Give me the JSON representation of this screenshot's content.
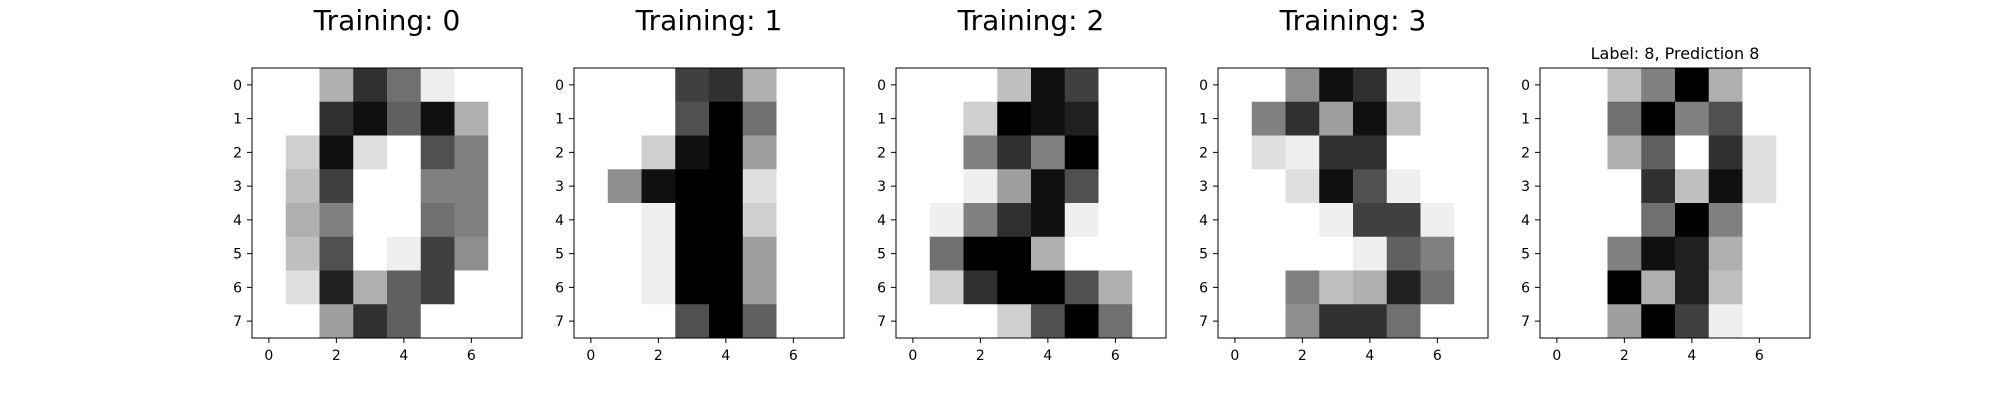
{
  "chart_data": [
    {
      "type": "heatmap",
      "title": "Training: 0",
      "colormap": "gray_r",
      "vmin": 0,
      "vmax": 16,
      "x_ticks": [
        0,
        2,
        4,
        6
      ],
      "y_ticks": [
        0,
        1,
        2,
        3,
        4,
        5,
        6,
        7
      ],
      "values": [
        [
          0,
          0,
          5,
          13,
          9,
          1,
          0,
          0
        ],
        [
          0,
          0,
          13,
          15,
          10,
          15,
          5,
          0
        ],
        [
          0,
          3,
          15,
          2,
          0,
          11,
          8,
          0
        ],
        [
          0,
          4,
          12,
          0,
          0,
          8,
          8,
          0
        ],
        [
          0,
          5,
          8,
          0,
          0,
          9,
          8,
          0
        ],
        [
          0,
          4,
          11,
          0,
          1,
          12,
          7,
          0
        ],
        [
          0,
          2,
          14,
          5,
          10,
          12,
          0,
          0
        ],
        [
          0,
          0,
          6,
          13,
          10,
          0,
          0,
          0
        ]
      ]
    },
    {
      "type": "heatmap",
      "title": "Training: 1",
      "colormap": "gray_r",
      "vmin": 0,
      "vmax": 16,
      "x_ticks": [
        0,
        2,
        4,
        6
      ],
      "y_ticks": [
        0,
        1,
        2,
        3,
        4,
        5,
        6,
        7
      ],
      "values": [
        [
          0,
          0,
          0,
          12,
          13,
          5,
          0,
          0
        ],
        [
          0,
          0,
          0,
          11,
          16,
          9,
          0,
          0
        ],
        [
          0,
          0,
          3,
          15,
          16,
          6,
          0,
          0
        ],
        [
          0,
          7,
          15,
          16,
          16,
          2,
          0,
          0
        ],
        [
          0,
          0,
          1,
          16,
          16,
          3,
          0,
          0
        ],
        [
          0,
          0,
          1,
          16,
          16,
          6,
          0,
          0
        ],
        [
          0,
          0,
          1,
          16,
          16,
          6,
          0,
          0
        ],
        [
          0,
          0,
          0,
          11,
          16,
          10,
          0,
          0
        ]
      ]
    },
    {
      "type": "heatmap",
      "title": "Training: 2",
      "colormap": "gray_r",
      "vmin": 0,
      "vmax": 16,
      "x_ticks": [
        0,
        2,
        4,
        6
      ],
      "y_ticks": [
        0,
        1,
        2,
        3,
        4,
        5,
        6,
        7
      ],
      "values": [
        [
          0,
          0,
          0,
          4,
          15,
          12,
          0,
          0
        ],
        [
          0,
          0,
          3,
          16,
          15,
          14,
          0,
          0
        ],
        [
          0,
          0,
          8,
          13,
          8,
          16,
          0,
          0
        ],
        [
          0,
          0,
          1,
          6,
          15,
          11,
          0,
          0
        ],
        [
          0,
          1,
          8,
          13,
          15,
          1,
          0,
          0
        ],
        [
          0,
          9,
          16,
          16,
          5,
          0,
          0,
          0
        ],
        [
          0,
          3,
          13,
          16,
          16,
          11,
          5,
          0
        ],
        [
          0,
          0,
          0,
          3,
          11,
          16,
          9,
          0
        ]
      ]
    },
    {
      "type": "heatmap",
      "title": "Training: 3",
      "colormap": "gray_r",
      "vmin": 0,
      "vmax": 16,
      "x_ticks": [
        0,
        2,
        4,
        6
      ],
      "y_ticks": [
        0,
        1,
        2,
        3,
        4,
        5,
        6,
        7
      ],
      "values": [
        [
          0,
          0,
          7,
          15,
          13,
          1,
          0,
          0
        ],
        [
          0,
          8,
          13,
          6,
          15,
          4,
          0,
          0
        ],
        [
          0,
          2,
          1,
          13,
          13,
          0,
          0,
          0
        ],
        [
          0,
          0,
          2,
          15,
          11,
          1,
          0,
          0
        ],
        [
          0,
          0,
          0,
          1,
          12,
          12,
          1,
          0
        ],
        [
          0,
          0,
          0,
          0,
          1,
          10,
          8,
          0
        ],
        [
          0,
          0,
          8,
          4,
          5,
          14,
          9,
          0
        ],
        [
          0,
          0,
          7,
          13,
          13,
          9,
          0,
          0
        ]
      ]
    },
    {
      "type": "heatmap",
      "title": "Label: 8, Prediction 8",
      "colormap": "gray_r",
      "vmin": 0,
      "vmax": 16,
      "x_ticks": [
        0,
        2,
        4,
        6
      ],
      "y_ticks": [
        0,
        1,
        2,
        3,
        4,
        5,
        6,
        7
      ],
      "values": [
        [
          0,
          0,
          4,
          8,
          16,
          5,
          0,
          0
        ],
        [
          0,
          0,
          9,
          16,
          8,
          11,
          0,
          0
        ],
        [
          0,
          0,
          5,
          10,
          0,
          13,
          2,
          0
        ],
        [
          0,
          0,
          0,
          13,
          4,
          15,
          2,
          0
        ],
        [
          0,
          0,
          0,
          9,
          16,
          8,
          0,
          0
        ],
        [
          0,
          0,
          8,
          15,
          14,
          5,
          0,
          0
        ],
        [
          0,
          0,
          16,
          5,
          14,
          4,
          0,
          0
        ],
        [
          0,
          0,
          6,
          16,
          12,
          1,
          0,
          0
        ]
      ]
    }
  ]
}
